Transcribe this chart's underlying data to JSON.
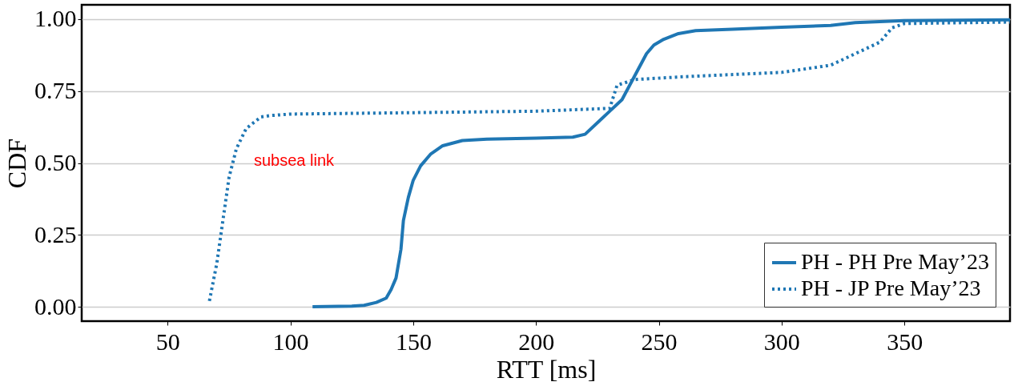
{
  "chart_data": {
    "type": "line",
    "xlabel": "RTT [ms]",
    "ylabel": "CDF",
    "xlim": [
      15,
      393
    ],
    "ylim": [
      -0.05,
      1.05
    ],
    "xticks": [
      50,
      100,
      150,
      200,
      250,
      300,
      350
    ],
    "yticks": [
      {
        "value": 0,
        "label": "0.00"
      },
      {
        "value": 0.25,
        "label": "0.25"
      },
      {
        "value": 0.5,
        "label": "0.50"
      },
      {
        "value": 0.75,
        "label": "0.75"
      },
      {
        "value": 1,
        "label": "1.00"
      }
    ],
    "grid": "y",
    "legend": "bottom right",
    "marker": "none",
    "series": [
      {
        "name": "PH - PH Pre May’23",
        "color": "#1f77b4",
        "line_style": "solid",
        "x": [
          109,
          125,
          130,
          135,
          139,
          141,
          143,
          145,
          146,
          148,
          150,
          153,
          157,
          162,
          170,
          180,
          200,
          215,
          220,
          225,
          230,
          235,
          240,
          245,
          248,
          252,
          258,
          265,
          280,
          300,
          320,
          330,
          350,
          393
        ],
        "values": [
          0,
          0.002,
          0.005,
          0.015,
          0.03,
          0.06,
          0.1,
          0.2,
          0.3,
          0.38,
          0.44,
          0.49,
          0.53,
          0.56,
          0.578,
          0.583,
          0.586,
          0.59,
          0.6,
          0.64,
          0.68,
          0.72,
          0.8,
          0.88,
          0.91,
          0.93,
          0.95,
          0.96,
          0.965,
          0.972,
          0.978,
          0.988,
          0.995,
          0.998
        ]
      },
      {
        "name": "PH - JP Pre May’23",
        "color": "#1f77b4",
        "line_style": "dotted",
        "x": [
          67,
          70,
          73,
          75,
          78,
          82,
          88,
          92,
          100,
          150,
          200,
          230,
          233,
          240,
          260,
          300,
          320,
          330,
          340,
          345,
          350,
          393
        ],
        "values": [
          0.02,
          0.15,
          0.33,
          0.45,
          0.55,
          0.62,
          0.66,
          0.665,
          0.67,
          0.675,
          0.68,
          0.69,
          0.77,
          0.79,
          0.8,
          0.815,
          0.84,
          0.88,
          0.92,
          0.97,
          0.985,
          0.99
        ]
      }
    ],
    "annotations": [
      "subsea link"
    ]
  }
}
